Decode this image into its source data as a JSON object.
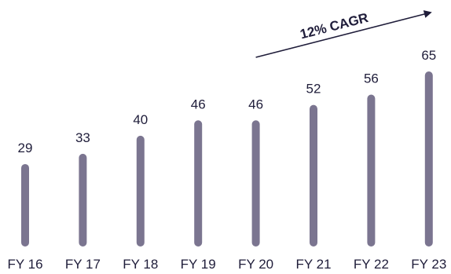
{
  "chart_data": {
    "type": "bar",
    "categories": [
      "FY 16",
      "FY 17",
      "FY 18",
      "FY 19",
      "FY 20",
      "FY 21",
      "FY 22",
      "FY 23"
    ],
    "values": [
      29,
      33,
      40,
      46,
      46,
      52,
      56,
      65
    ],
    "title": "",
    "xlabel": "",
    "ylabel": "",
    "ylim": [
      0,
      65
    ],
    "grid": false,
    "bar_color": "#7b7590",
    "text_color": "#1f1d3a",
    "annotation": {
      "text": "12% CAGR",
      "arrow_from_category": "FY 20",
      "arrow_to_category": "FY 23"
    }
  }
}
